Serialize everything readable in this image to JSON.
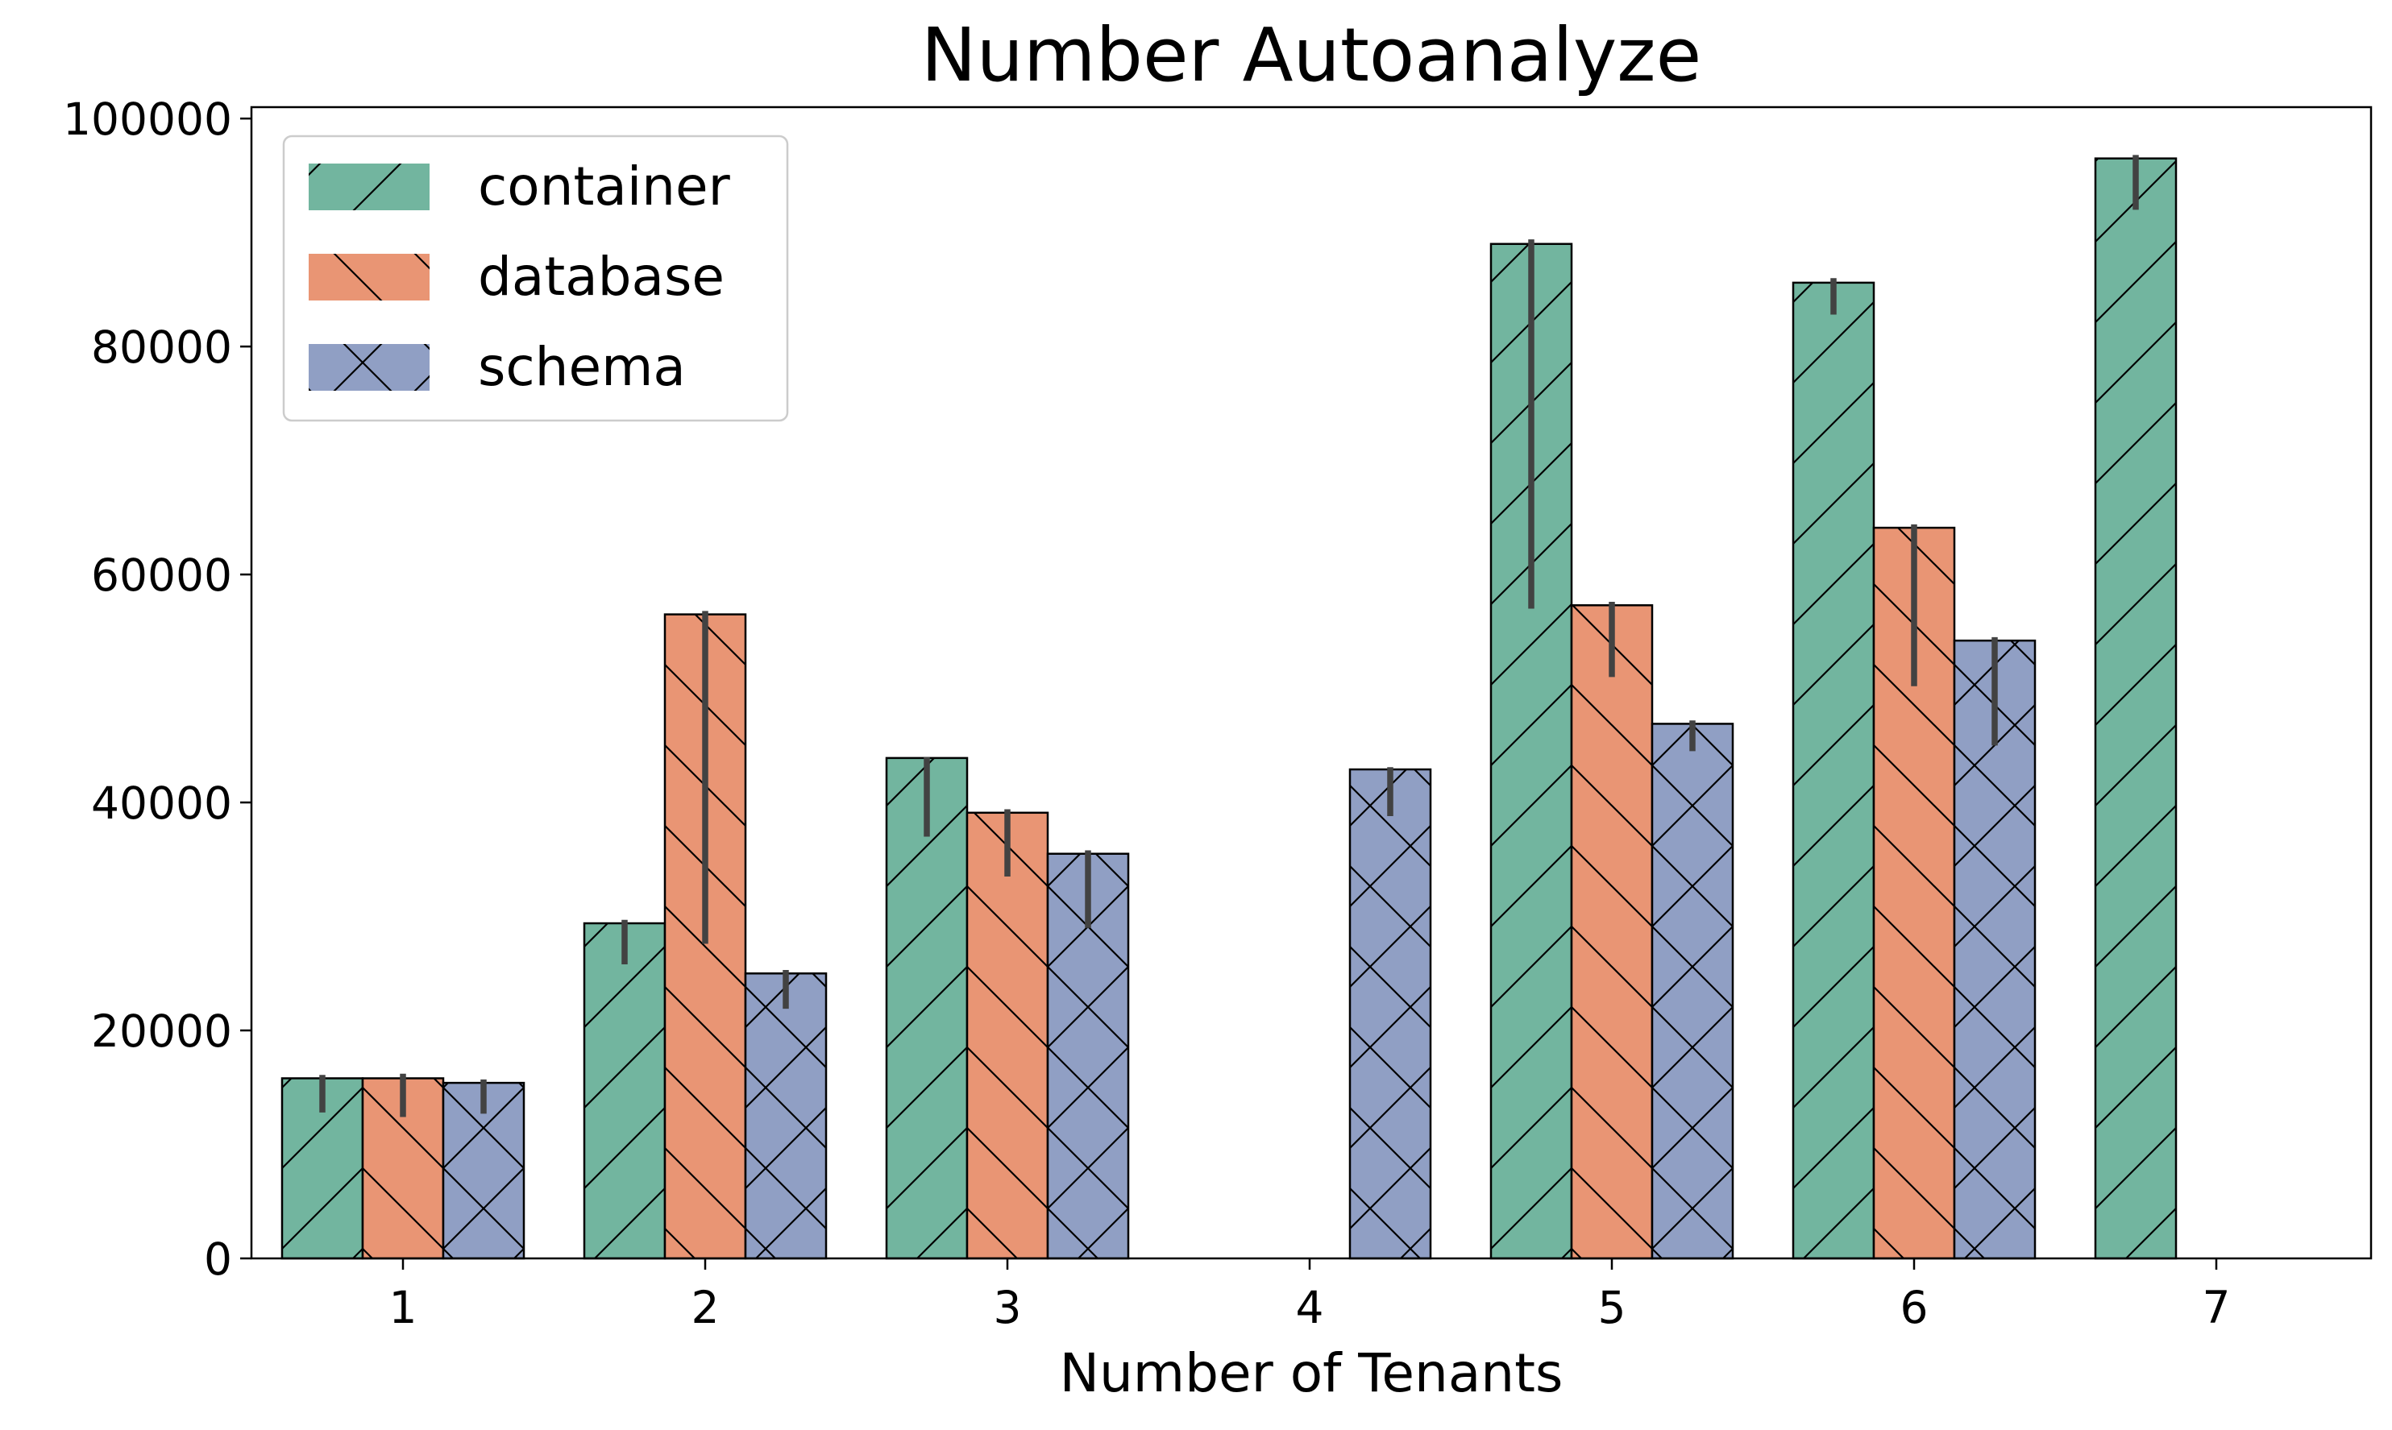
{
  "chart_data": {
    "type": "bar",
    "title": "Number Autoanalyze",
    "xlabel": "Number of Tenants",
    "ylabel": "",
    "categories": [
      "1",
      "2",
      "3",
      "4",
      "5",
      "6",
      "7"
    ],
    "ylim": [
      0,
      101000
    ],
    "yticks": [
      "0",
      "20000",
      "40000",
      "60000",
      "80000",
      "100000"
    ],
    "legend_position": "top-left",
    "grid": false,
    "series": [
      {
        "name": "container",
        "color": "#72b59f",
        "hatch": "diagonal-forward",
        "values": [
          15800,
          29400,
          43900,
          null,
          89000,
          85600,
          96500
        ],
        "err_low": [
          12800,
          25800,
          37000,
          null,
          57000,
          82800,
          92000
        ],
        "err_high": [
          16100,
          29700,
          44000,
          null,
          89400,
          86000,
          96800
        ]
      },
      {
        "name": "database",
        "color": "#e99574",
        "hatch": "diagonal-backward",
        "values": [
          15800,
          56500,
          39100,
          null,
          57300,
          64100,
          null
        ],
        "err_low": [
          12400,
          27600,
          33500,
          null,
          51000,
          50200,
          null
        ],
        "err_high": [
          16200,
          56800,
          39400,
          null,
          57600,
          64400,
          null
        ]
      },
      {
        "name": "schema",
        "color": "#909fc4",
        "hatch": "crosshatch",
        "values": [
          15400,
          25000,
          35500,
          42900,
          46900,
          54200,
          null
        ],
        "err_low": [
          12700,
          21900,
          29000,
          38800,
          44500,
          45000,
          null
        ],
        "err_high": [
          15700,
          25300,
          35800,
          43100,
          47200,
          54500,
          null
        ]
      }
    ]
  }
}
